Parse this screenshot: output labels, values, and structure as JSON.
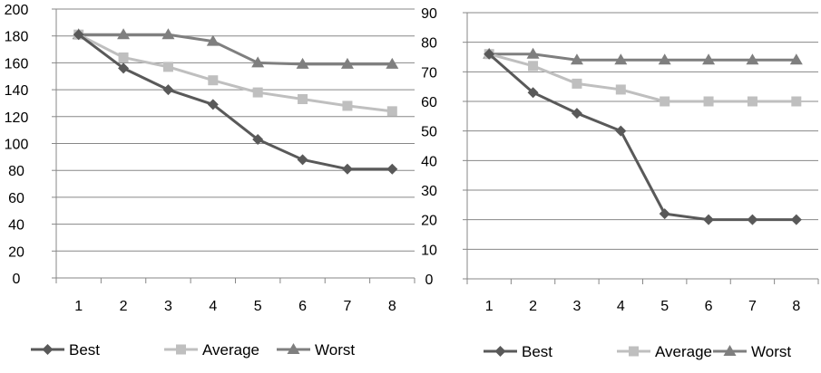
{
  "chart_data": [
    {
      "type": "line",
      "title": "",
      "xlabel": "",
      "ylabel": "",
      "categories": [
        "1",
        "2",
        "3",
        "4",
        "5",
        "6",
        "7",
        "8"
      ],
      "ylim": [
        0,
        200
      ],
      "yticks": [
        "0",
        "20",
        "40",
        "60",
        "80",
        "100",
        "120",
        "140",
        "160",
        "180",
        "200"
      ],
      "grid": "horizontal",
      "legend_position": "bottom",
      "series": [
        {
          "name": "Best",
          "marker": "diamond",
          "color": "#595959",
          "values": [
            181,
            156,
            140,
            129,
            103,
            88,
            81,
            81
          ]
        },
        {
          "name": "Average",
          "marker": "square",
          "color": "#bfbfbf",
          "values": [
            181,
            164,
            157,
            147,
            138,
            133,
            128,
            124
          ]
        },
        {
          "name": "Worst",
          "marker": "triangle",
          "color": "#7f7f7f",
          "values": [
            181,
            181,
            181,
            176,
            160,
            159,
            159,
            159
          ]
        }
      ]
    },
    {
      "type": "line",
      "title": "",
      "xlabel": "",
      "ylabel": "",
      "categories": [
        "1",
        "2",
        "3",
        "4",
        "5",
        "6",
        "7",
        "8"
      ],
      "ylim": [
        0,
        90
      ],
      "yticks": [
        "0",
        "10",
        "20",
        "30",
        "40",
        "50",
        "60",
        "70",
        "80",
        "90"
      ],
      "grid": "horizontal",
      "legend_position": "bottom",
      "series": [
        {
          "name": "Best",
          "marker": "diamond",
          "color": "#595959",
          "values": [
            76,
            63,
            56,
            50,
            22,
            20,
            20,
            20
          ]
        },
        {
          "name": "Average",
          "marker": "square",
          "color": "#bfbfbf",
          "values": [
            76,
            72,
            66,
            64,
            60,
            60,
            60,
            60
          ]
        },
        {
          "name": "Worst",
          "marker": "triangle",
          "color": "#7f7f7f",
          "values": [
            76,
            76,
            74,
            74,
            74,
            74,
            74,
            74
          ]
        }
      ]
    }
  ]
}
